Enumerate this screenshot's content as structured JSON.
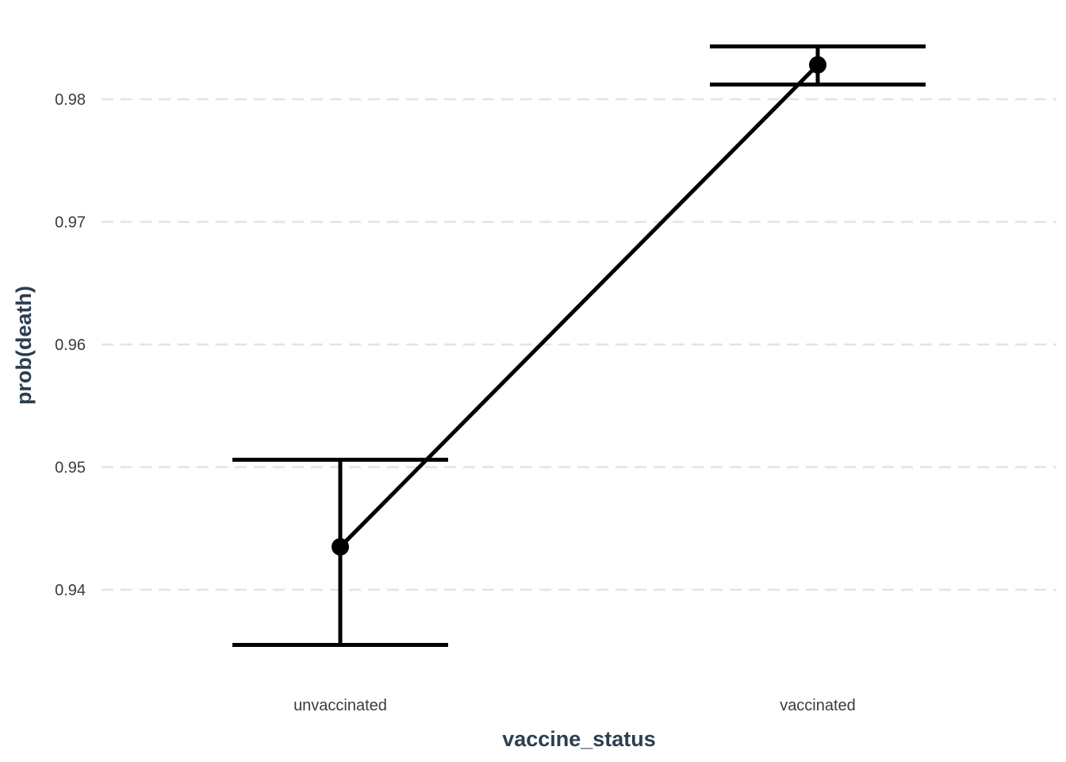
{
  "chart_data": {
    "type": "line",
    "title": "",
    "xlabel": "vaccine_status",
    "ylabel": "prob(death)",
    "categories": [
      "unvaccinated",
      "vaccinated"
    ],
    "series": [
      {
        "values": [
          0.9435,
          0.9828
        ],
        "lower": [
          0.9355,
          0.9812
        ],
        "upper": [
          0.9506,
          0.9843
        ]
      }
    ],
    "yticks": [
      0.94,
      0.95,
      0.96,
      0.97,
      0.98
    ],
    "ytick_labels": [
      "0.94",
      "0.95",
      "0.96",
      "0.97",
      "0.98"
    ],
    "ylim": [
      0.9323,
      0.9855
    ],
    "grid": "horizontal dashed",
    "legend": "none",
    "colors": {
      "line": "#000000",
      "grid": "#e3e3e3",
      "axis_title": "#2c3e50",
      "tick_text": "#3b3b3b"
    }
  }
}
